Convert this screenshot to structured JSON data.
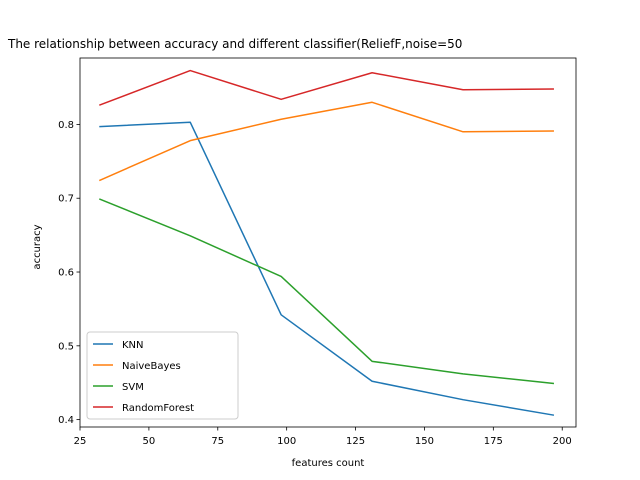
{
  "chart_data": {
    "type": "line",
    "title": "The relationship between accuracy and different classifier(ReliefF,noise=50",
    "xlabel": "features count",
    "ylabel": "accuracy",
    "x": [
      32,
      65,
      98,
      131,
      164,
      197
    ],
    "xlim": [
      25,
      205
    ],
    "ylim": [
      0.39,
      0.89
    ],
    "xticks": [
      25,
      50,
      75,
      100,
      125,
      150,
      175,
      200
    ],
    "yticks": [
      0.4,
      0.5,
      0.6,
      0.7,
      0.8
    ],
    "grid": false,
    "legend_position": "lower-left",
    "series": [
      {
        "name": "KNN",
        "color": "#1f77b4",
        "values": [
          0.797,
          0.803,
          0.542,
          0.452,
          0.427,
          0.406
        ]
      },
      {
        "name": "NaiveBayes",
        "color": "#ff7f0e",
        "values": [
          0.724,
          0.778,
          0.807,
          0.83,
          0.79,
          0.791
        ]
      },
      {
        "name": "SVM",
        "color": "#2ca02c",
        "values": [
          0.699,
          0.649,
          0.594,
          0.479,
          0.462,
          0.449
        ]
      },
      {
        "name": "RandomForest",
        "color": "#d62728",
        "values": [
          0.826,
          0.873,
          0.834,
          0.87,
          0.847,
          0.848
        ]
      }
    ]
  }
}
